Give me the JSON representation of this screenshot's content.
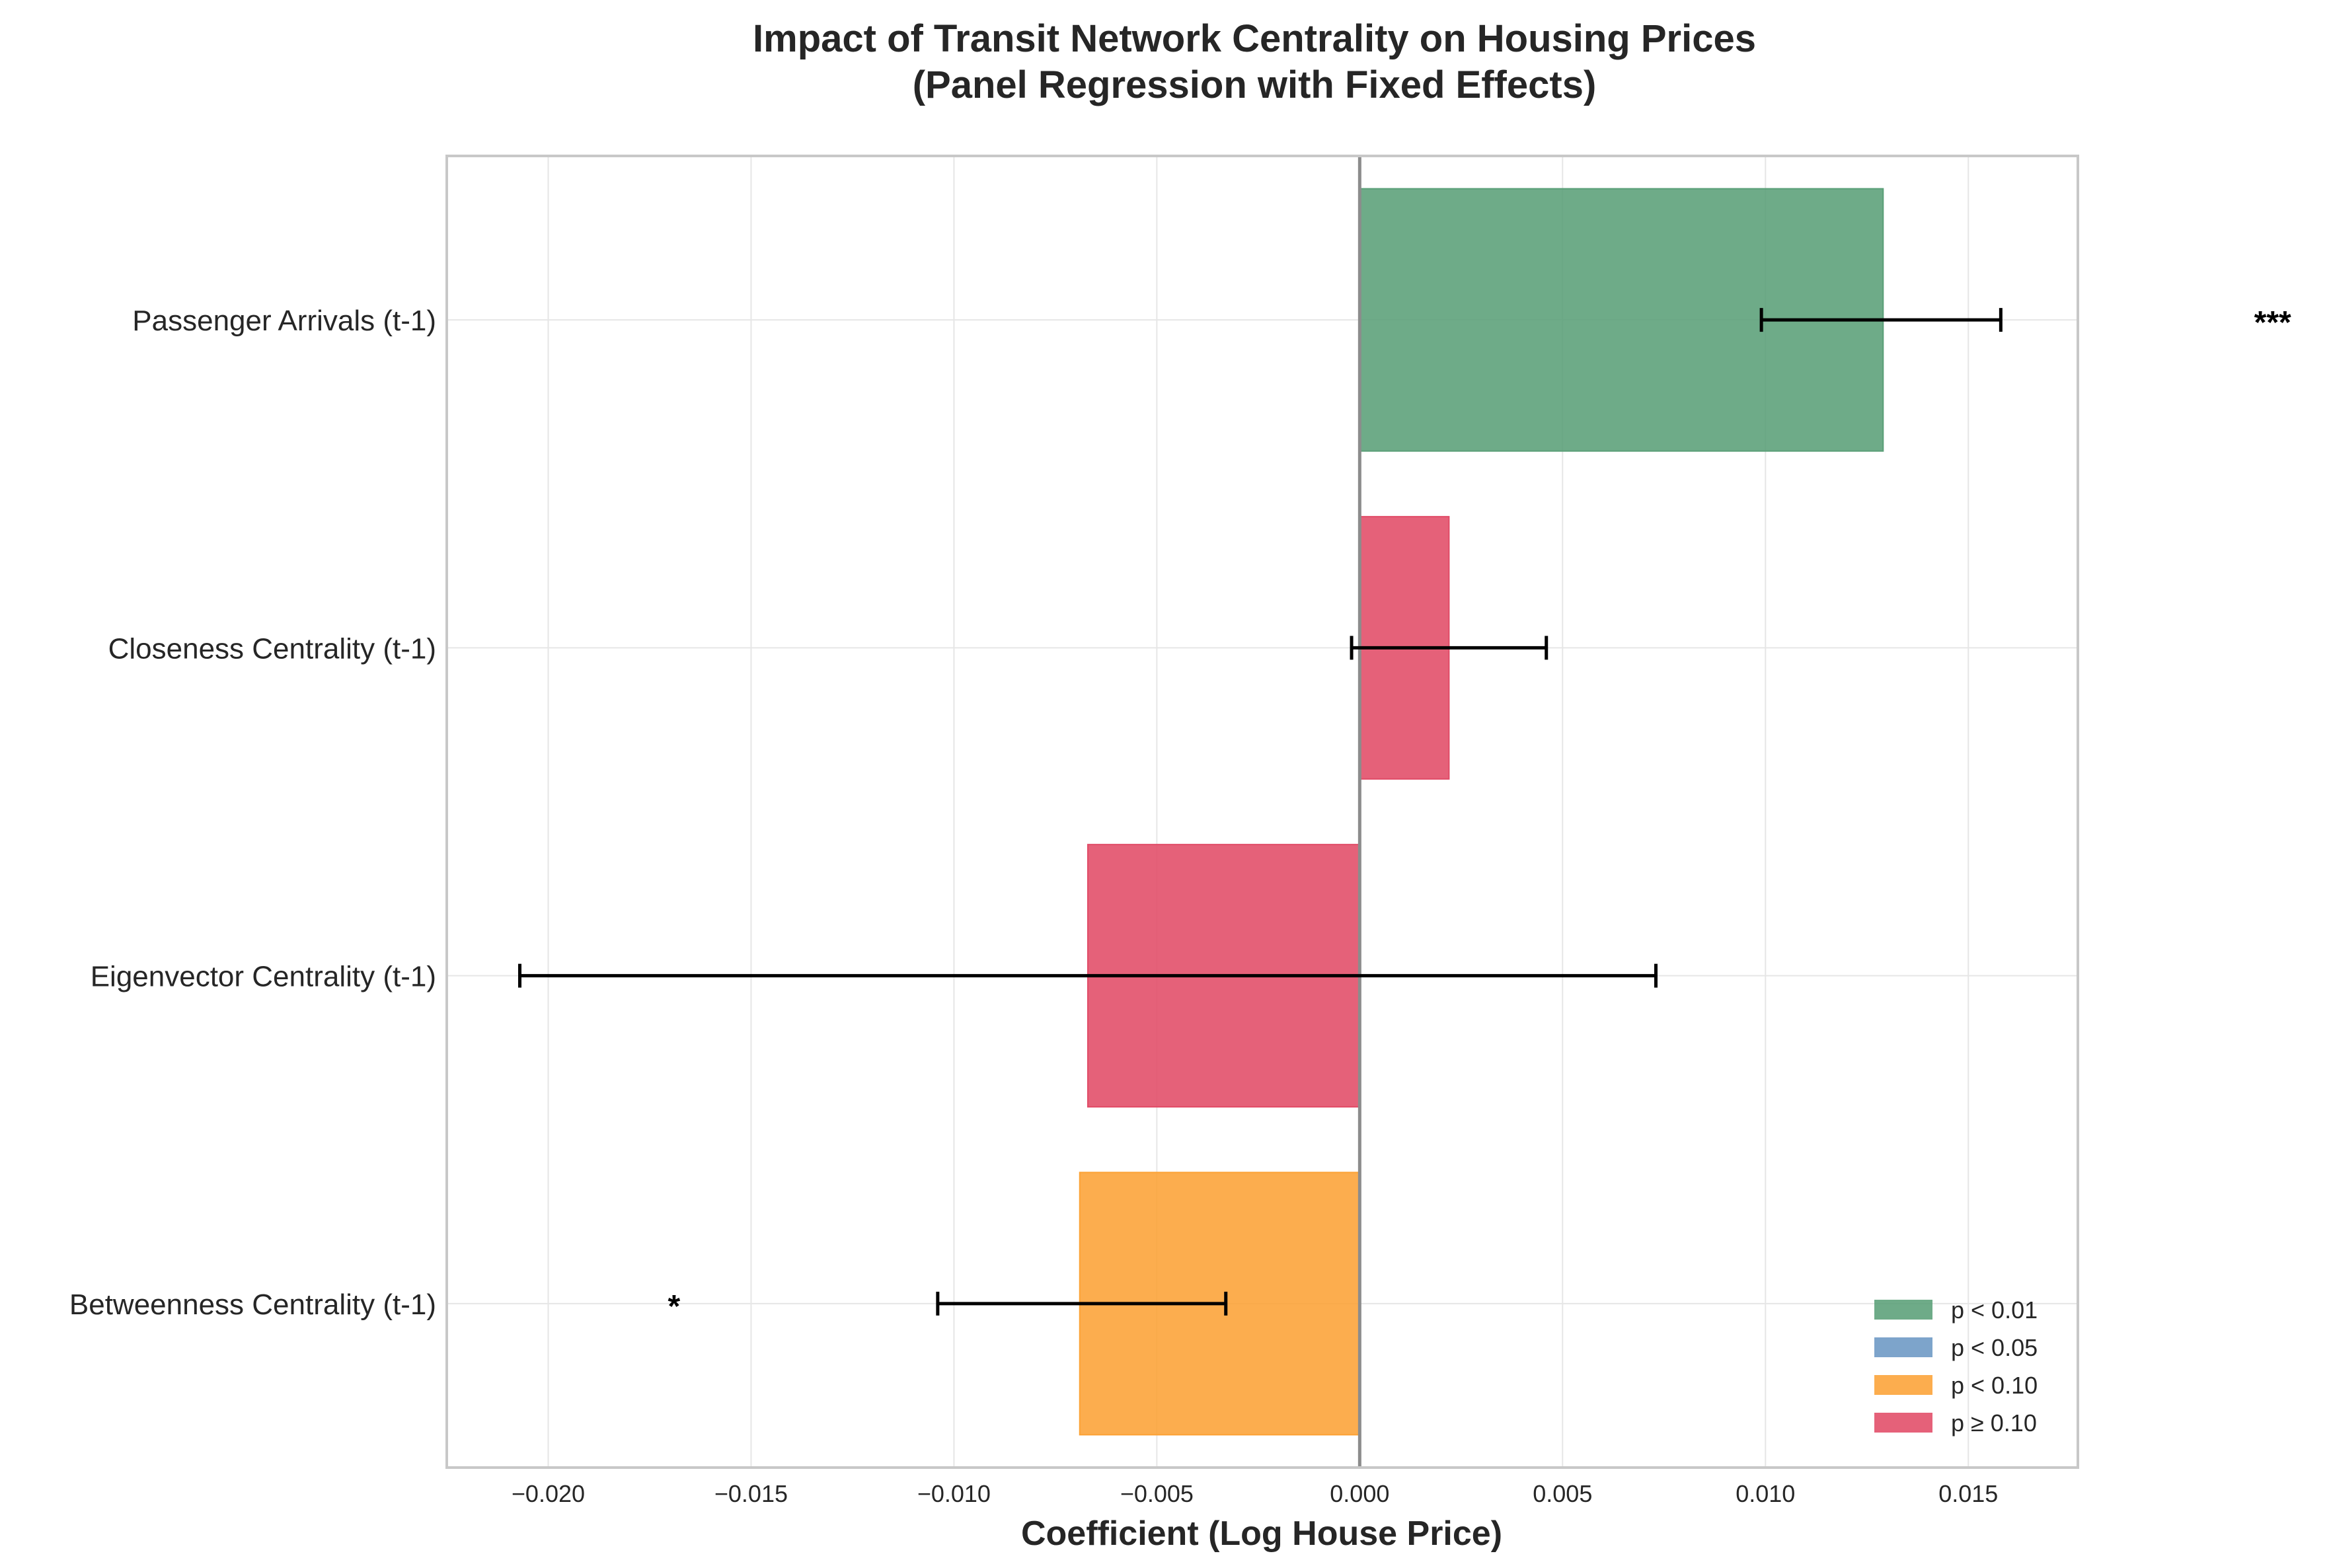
{
  "chart_data": {
    "type": "bar",
    "orientation": "horizontal",
    "title": "Impact of Transit Network Centrality on Housing Prices",
    "subtitle": "(Panel Regression with Fixed Effects)",
    "xlabel": "Coefficient (Log House Price)",
    "ylabel": "",
    "xlim": [
      -0.0225,
      0.0177
    ],
    "xticks": [
      -0.02,
      -0.015,
      -0.01,
      -0.005,
      0.0,
      0.005,
      0.01,
      0.015
    ],
    "xtick_labels": [
      "−0.020",
      "−0.015",
      "−0.010",
      "−0.005",
      "0.000",
      "0.005",
      "0.010",
      "0.015"
    ],
    "grid": true,
    "legend_position": "bottom-right",
    "categories": [
      "Passenger Arrivals (t-1)",
      "Closeness Centrality (t-1)",
      "Eigenvector Centrality (t-1)",
      "Betweenness Centrality (t-1)"
    ],
    "values": [
      0.0129,
      0.0022,
      -0.0067,
      -0.0069
    ],
    "ci_low": [
      0.0099,
      -0.0002,
      -0.0207,
      -0.0104
    ],
    "ci_high": [
      0.0158,
      0.0046,
      0.0073,
      -0.0033
    ],
    "significance_group": [
      "p < 0.01",
      "p ≥ 0.10",
      "p ≥ 0.10",
      "p < 0.10"
    ],
    "annotations": [
      "***",
      "",
      "",
      "*"
    ],
    "annotation_x": [
      0.0225,
      null,
      null,
      -0.0169
    ],
    "legend": [
      {
        "label": "p < 0.01",
        "color": "#5a9f77"
      },
      {
        "label": "p < 0.05",
        "color": "#6b97c4"
      },
      {
        "label": "p < 0.10",
        "color": "#fca235"
      },
      {
        "label": "p ≥ 0.10",
        "color": "#e14b67"
      }
    ]
  }
}
